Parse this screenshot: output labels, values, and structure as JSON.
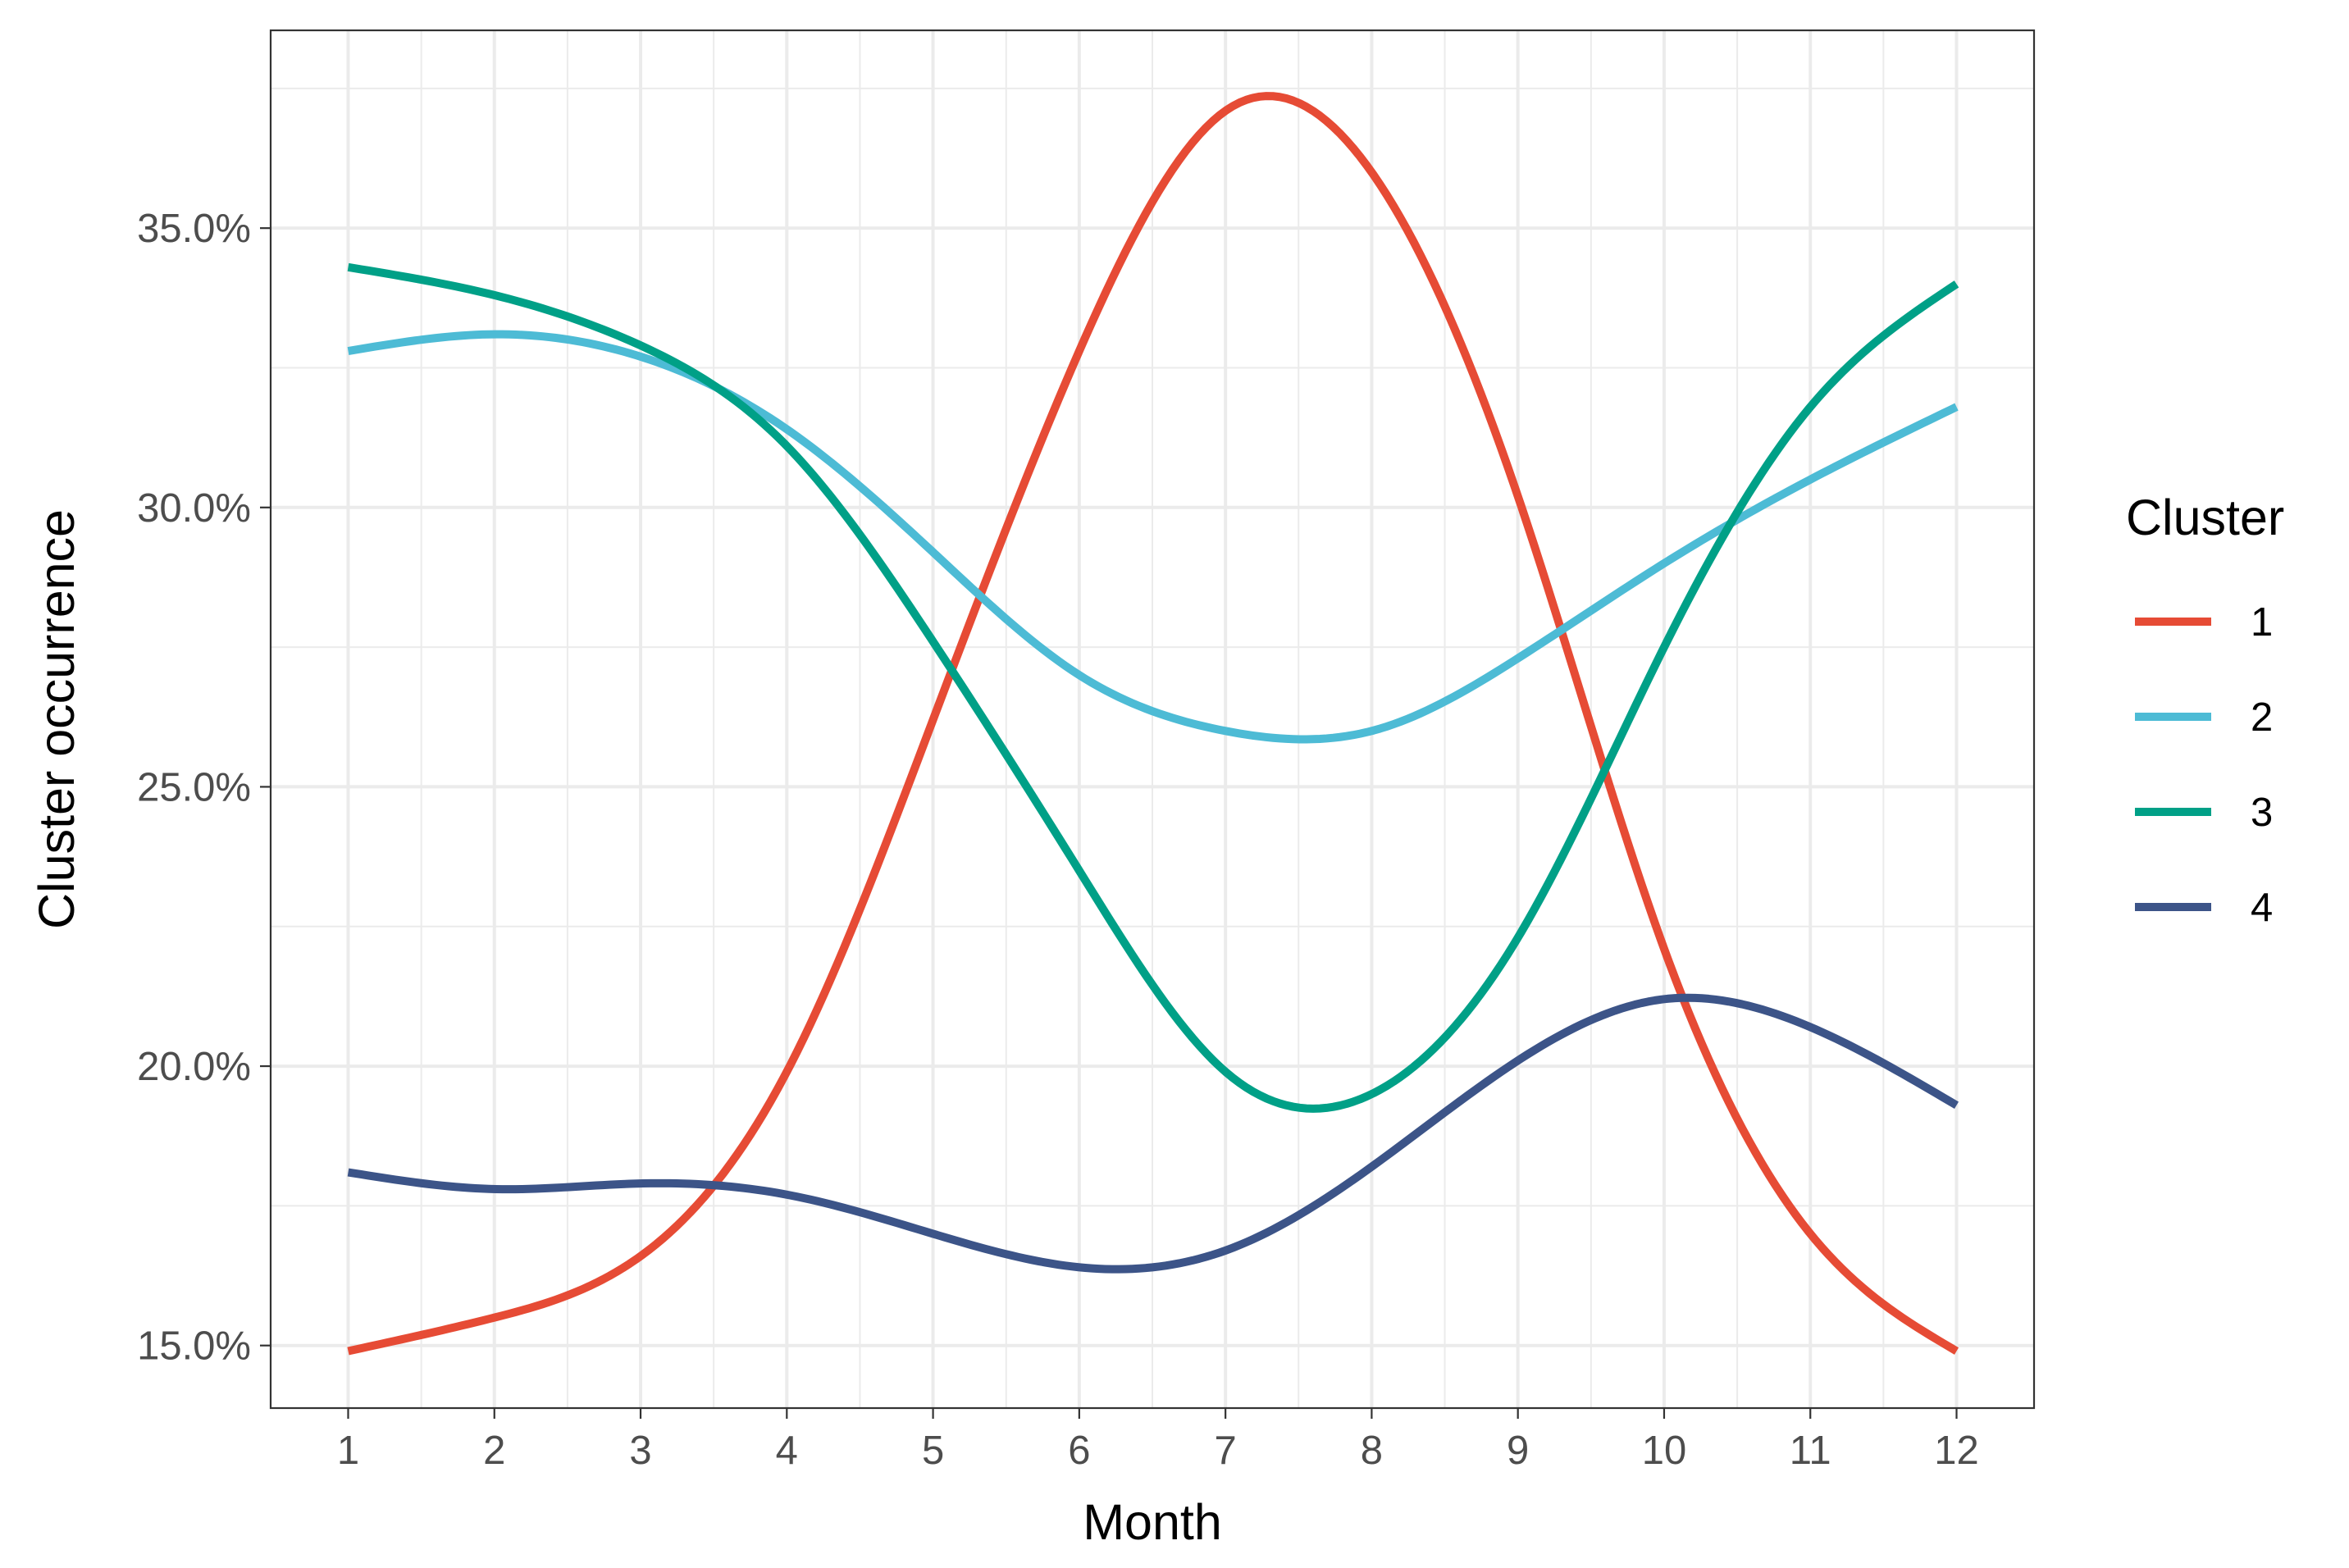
{
  "chart_data": {
    "type": "line",
    "title": "",
    "xlabel": "Month",
    "ylabel": "Cluster occurrence",
    "x": [
      1,
      2,
      3,
      4,
      5,
      6,
      7,
      8,
      9,
      10,
      11,
      12
    ],
    "xlim": [
      0.47,
      12.53
    ],
    "ylim": [
      0.1388,
      0.3854
    ],
    "y_ticks": [
      0.15,
      0.2,
      0.25,
      0.3,
      0.35
    ],
    "y_tick_labels": [
      "15.0%",
      "20.0%",
      "25.0%",
      "30.0%",
      "35.0%"
    ],
    "x_tick_labels": [
      "1",
      "2",
      "3",
      "4",
      "5",
      "6",
      "7",
      "8",
      "9",
      "10",
      "11",
      "12"
    ],
    "grid": true,
    "legend": {
      "title": "Cluster",
      "position": "right"
    },
    "series": [
      {
        "name": "1",
        "color": "#E64B35",
        "values": [
          0.149,
          0.155,
          0.166,
          0.199,
          0.262,
          0.328,
          0.371,
          0.36,
          0.302,
          0.221,
          0.17,
          0.149
        ]
      },
      {
        "name": "2",
        "color": "#4DBBD5",
        "values": [
          0.328,
          0.331,
          0.327,
          0.314,
          0.292,
          0.27,
          0.26,
          0.26,
          0.273,
          0.29,
          0.305,
          0.318
        ]
      },
      {
        "name": "3",
        "color": "#00A087",
        "values": [
          0.343,
          0.338,
          0.329,
          0.311,
          0.276,
          0.235,
          0.199,
          0.195,
          0.223,
          0.275,
          0.318,
          0.34
        ]
      },
      {
        "name": "4",
        "color": "#3C5488",
        "values": [
          0.181,
          0.178,
          0.179,
          0.177,
          0.17,
          0.164,
          0.167,
          0.182,
          0.201,
          0.212,
          0.207,
          0.193
        ]
      }
    ]
  }
}
